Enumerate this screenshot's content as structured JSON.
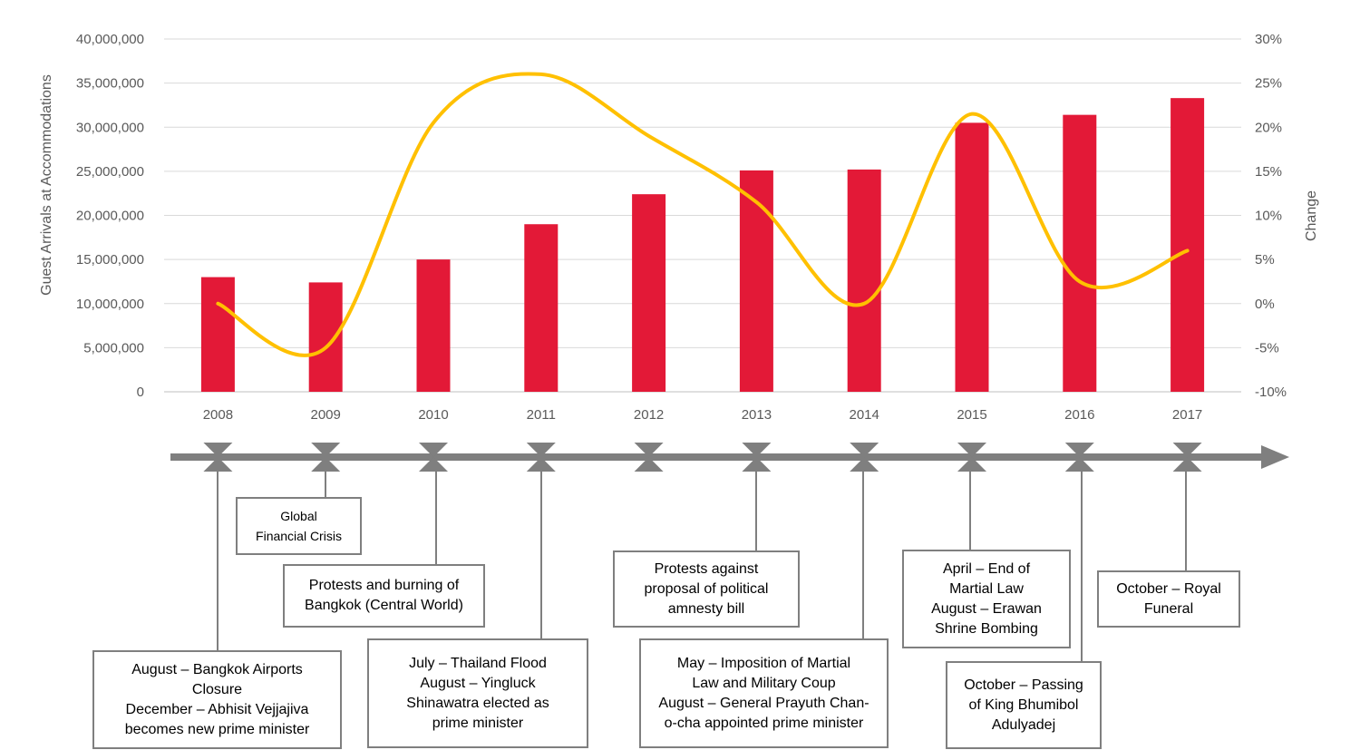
{
  "chart_data": {
    "type": "bar",
    "categories": [
      "2008",
      "2009",
      "2010",
      "2011",
      "2012",
      "2013",
      "2014",
      "2015",
      "2016",
      "2017"
    ],
    "series": [
      {
        "kind": "bar",
        "axis": "left",
        "color": "#E31937",
        "values": [
          13000000,
          12400000,
          15000000,
          19000000,
          22400000,
          25100000,
          25200000,
          30500000,
          31400000,
          33300000
        ]
      },
      {
        "kind": "line",
        "axis": "right",
        "color": "#FFC000",
        "smooth": true,
        "values": [
          0,
          -5,
          20.5,
          26,
          19,
          11.5,
          0,
          21.5,
          2.5,
          6
        ]
      }
    ],
    "xlabel": "",
    "ylabel": "Guest Arrivals at Accommodations",
    "ylabel_right": "Change",
    "ylim": [
      0,
      40000000
    ],
    "ylim_right": [
      -10,
      30
    ],
    "yticks": [
      "0",
      "5,000,000",
      "10,000,000",
      "15,000,000",
      "20,000,000",
      "25,000,000",
      "30,000,000",
      "35,000,000",
      "40,000,000"
    ],
    "yticks_right": [
      "-10%",
      "-5%",
      "0%",
      "5%",
      "10%",
      "15%",
      "20%",
      "25%",
      "30%"
    ],
    "grid": "horizontal"
  },
  "timeline": {
    "color": "#7F7F7F",
    "events": [
      {
        "year": "2008",
        "lines": [
          "August – Bangkok Airports",
          "Closure",
          "December – Abhisit Vejjajiva",
          "becomes new prime minister"
        ]
      },
      {
        "year": "2009",
        "lines": [
          "Global",
          "Financial Crisis"
        ]
      },
      {
        "year": "2010",
        "lines": [
          "Protests and burning of",
          "Bangkok (Central World)"
        ]
      },
      {
        "year": "2011",
        "lines": [
          "July – Thailand Flood",
          "August – Yingluck",
          "Shinawatra elected as",
          "prime minister"
        ]
      },
      {
        "year": "2013",
        "lines": [
          "Protests against",
          "proposal of political",
          "amnesty bill"
        ]
      },
      {
        "year": "2014",
        "lines": [
          "May – Imposition of Martial",
          "Law and Military Coup",
          "August – General Prayuth Chan-",
          "o-cha appointed prime minister"
        ]
      },
      {
        "year": "2015",
        "lines": [
          "April – End of",
          "Martial Law",
          "August – Erawan",
          "Shrine Bombing"
        ]
      },
      {
        "year": "2016",
        "lines": [
          "October – Passing",
          "of King Bhumibol",
          "Adulyadej"
        ]
      },
      {
        "year": "2017",
        "lines": [
          "October – Royal",
          "Funeral"
        ]
      }
    ]
  }
}
